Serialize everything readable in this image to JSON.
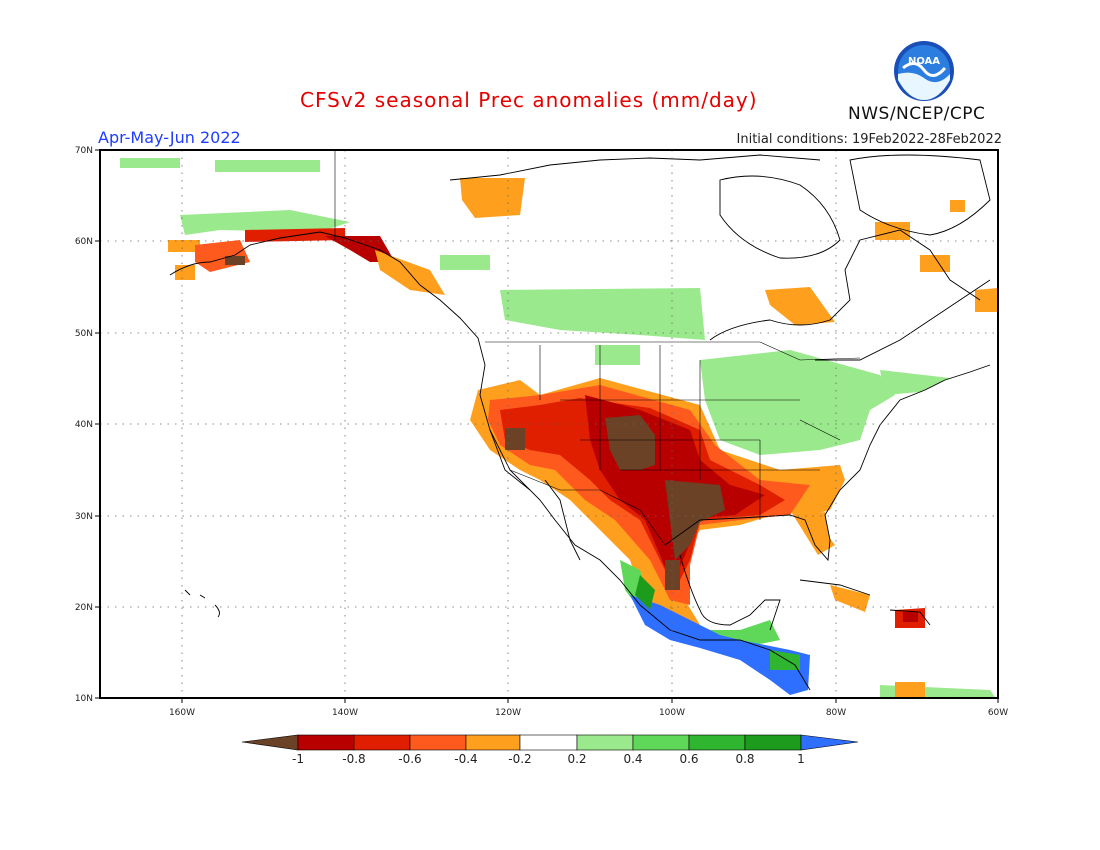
{
  "header": {
    "title": "CFSv2 seasonal Prec anomalies (mm/day)",
    "period": "Apr-May-Jun 2022",
    "initial_conditions": "Initial conditions: 19Feb2022-28Feb2022",
    "agency": "NWS/NCEP/CPC",
    "logo_text": "NOAA"
  },
  "map": {
    "lon_labels": [
      "160W",
      "140W",
      "120W",
      "100W",
      "80W",
      "60W"
    ],
    "lat_labels": [
      "70N",
      "60N",
      "50N",
      "40N",
      "30N",
      "20N",
      "10N"
    ],
    "gridlines": "dotted"
  },
  "colorbar": {
    "labels": [
      "-1",
      "-0.8",
      "-0.6",
      "-0.4",
      "-0.2",
      "0.2",
      "0.4",
      "0.6",
      "0.8",
      "1"
    ],
    "colors": [
      "#6b4226",
      "#b80000",
      "#e01e00",
      "#ff5a1e",
      "#ff9f1e",
      "#ffffff",
      "#9ae98c",
      "#5fd85a",
      "#2fb52f",
      "#1d9b1d",
      "#2f6fff"
    ]
  }
}
